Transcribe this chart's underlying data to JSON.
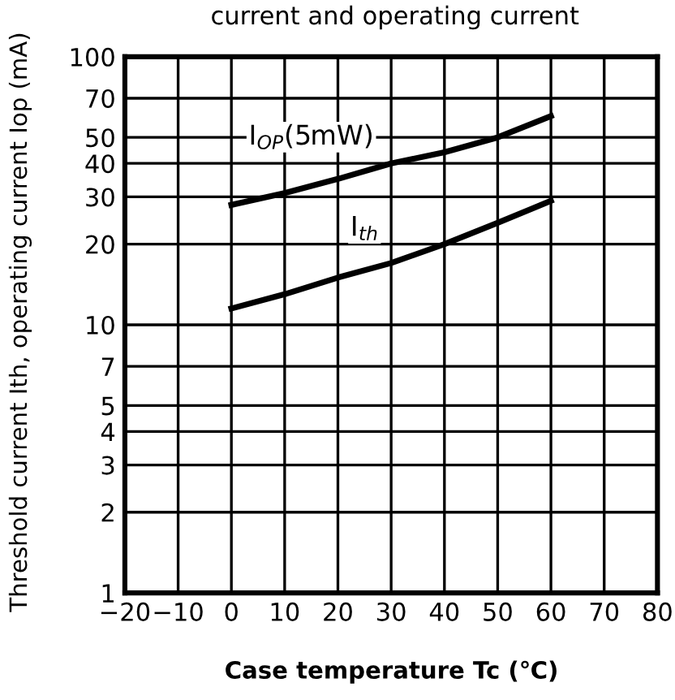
{
  "chart_data": {
    "type": "line",
    "title": "current and operating current",
    "xlabel": "Case temperature Tc (℃)",
    "ylabel": "Threshold current Ith, operating current Iop (mA)",
    "x": [
      0,
      10,
      20,
      30,
      40,
      50,
      60
    ],
    "series": [
      {
        "color": "#000000",
        "values": [
          28,
          31,
          35,
          40,
          44,
          50,
          60
        ]
      },
      {
        "color": "#000000",
        "values": [
          11.5,
          13,
          15,
          17,
          20,
          24,
          29
        ]
      }
    ],
    "annotations": [
      "I$_{OP}$(5mW)",
      "I$_{th}$"
    ],
    "log": "y",
    "xlim": [
      -20,
      80
    ],
    "ylim": [
      1,
      100
    ],
    "xticks": [
      {
        "value": -20,
        "label": "−20"
      },
      {
        "value": -10,
        "label": "−10"
      },
      0,
      10,
      20,
      30,
      40,
      50,
      60,
      70,
      80
    ],
    "yticks": [
      1,
      2,
      3,
      4,
      5,
      7,
      10,
      20,
      30,
      40,
      50,
      70,
      100
    ],
    "grid": true,
    "marker": "none",
    "line_style": "solid"
  }
}
